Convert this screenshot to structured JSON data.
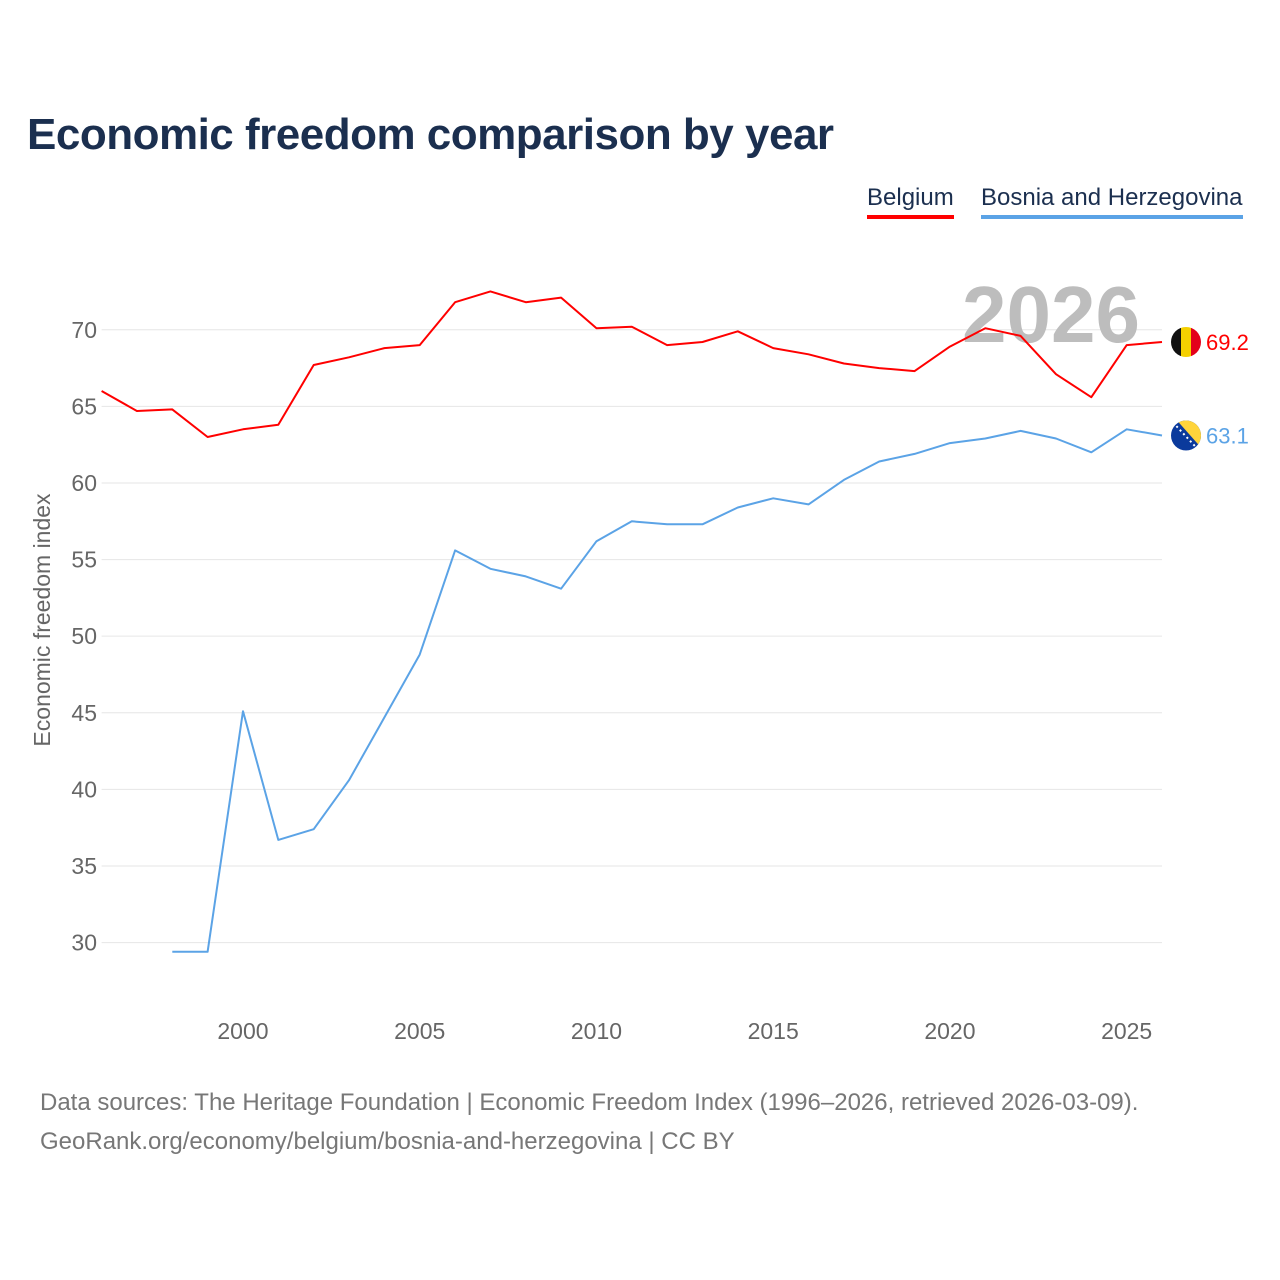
{
  "title": "Economic freedom comparison by year",
  "watermark_year": "2026",
  "footer": {
    "line1": "Data sources: The Heritage Foundation | Economic Freedom Index (1996–2026, retrieved 2026-03-09).",
    "line2": "GeoRank.org/economy/belgium/bosnia-and-herzegovina | CC BY"
  },
  "chart_data": {
    "type": "line",
    "title": "Economic freedom comparison by year",
    "xlabel": "",
    "ylabel": "Economic freedom index",
    "xlim": [
      1996,
      2026
    ],
    "ylim": [
      25.6,
      73.9
    ],
    "x_ticks": [
      2000,
      2005,
      2010,
      2015,
      2020,
      2025
    ],
    "y_ticks": [
      30,
      35,
      40,
      45,
      50,
      55,
      60,
      65,
      70
    ],
    "grid": true,
    "legend_placement": "top-right",
    "series": [
      {
        "name": "Belgium",
        "color": "#ff0000",
        "end_label": "69.2",
        "flag": "belgium-flag",
        "x": [
          1996,
          1997,
          1998,
          1999,
          2000,
          2001,
          2002,
          2003,
          2004,
          2005,
          2006,
          2007,
          2008,
          2009,
          2010,
          2011,
          2012,
          2013,
          2014,
          2015,
          2016,
          2017,
          2018,
          2019,
          2020,
          2021,
          2022,
          2023,
          2024,
          2025,
          2026
        ],
        "values": [
          66.0,
          64.7,
          64.8,
          63.0,
          63.5,
          63.8,
          67.7,
          68.2,
          68.8,
          69.0,
          71.8,
          72.5,
          71.8,
          72.1,
          70.1,
          70.2,
          69.0,
          69.2,
          69.9,
          68.8,
          68.4,
          67.8,
          67.5,
          67.3,
          68.9,
          70.1,
          69.6,
          67.1,
          65.6,
          69.0,
          69.2
        ]
      },
      {
        "name": "Bosnia and Herzegovina",
        "color": "#5ba3e6",
        "end_label": "63.1",
        "flag": "bosnia-flag",
        "x": [
          1998,
          1999,
          2000,
          2001,
          2002,
          2003,
          2004,
          2005,
          2006,
          2007,
          2008,
          2009,
          2010,
          2011,
          2012,
          2013,
          2014,
          2015,
          2016,
          2017,
          2018,
          2019,
          2020,
          2021,
          2022,
          2023,
          2024,
          2025,
          2026
        ],
        "values": [
          29.4,
          29.4,
          45.1,
          36.7,
          37.4,
          40.6,
          44.7,
          48.8,
          55.6,
          54.4,
          53.9,
          53.1,
          56.2,
          57.5,
          57.3,
          57.3,
          58.4,
          59.0,
          58.6,
          60.2,
          61.4,
          61.9,
          62.6,
          62.9,
          63.4,
          62.9,
          62.0,
          63.5,
          63.1
        ]
      }
    ]
  }
}
